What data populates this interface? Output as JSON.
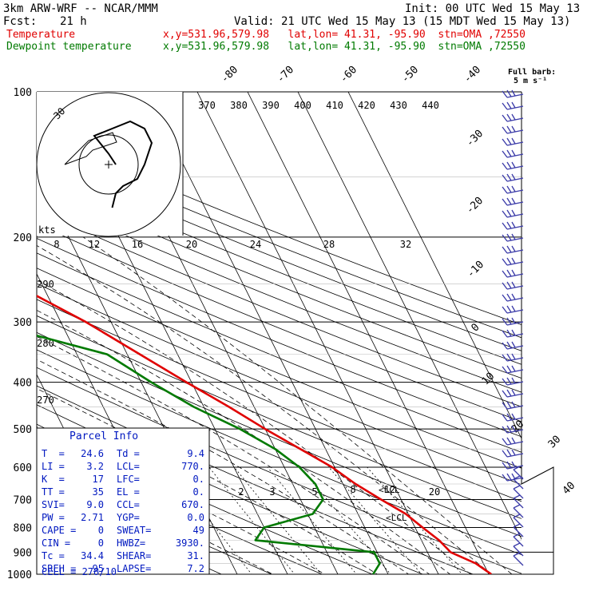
{
  "header": {
    "model": "3km ARW-WRF -- NCAR/MMM",
    "init": "Init: 00 UTC Wed 15 May 13",
    "fcst_label": "Fcst:",
    "fcst_value": "21 h",
    "valid": "Valid: 21 UTC Wed 15 May 13 (15 MDT Wed 15 May 13)",
    "temp_label": "Temperature",
    "temp_info": "x,y=531.96,579.98   lat,lon= 41.31, -95.90  stn=OMA ,72550",
    "dew_label": "Dewpoint temperature",
    "dew_info": "x,y=531.96,579.98   lat,lon= 41.31, -95.90  stn=OMA ,72550"
  },
  "colors": {
    "temperature": "#e00000",
    "dewpoint": "#007a00",
    "info": "#0018c0",
    "isobar": "#000000"
  },
  "chart_data": {
    "type": "line",
    "title": "",
    "pressure_levels": [
      "100",
      "200",
      "300",
      "400",
      "500",
      "600",
      "700",
      "800",
      "900",
      "1000"
    ],
    "isotherm_labels": [
      "-80",
      "-70",
      "-60",
      "-50",
      "-40",
      "-30",
      "-20",
      "-10",
      "0",
      "10",
      "20",
      "30",
      "40"
    ],
    "adiabat_labels": [
      "290",
      "280",
      "270"
    ],
    "theta_e_labels": [
      "370",
      "380",
      "390",
      "400",
      "410",
      "420",
      "430",
      "440"
    ],
    "mixing_ratio_labels": [
      "2",
      "3",
      "5",
      "8",
      "12",
      "20"
    ],
    "lcl_labels": [
      "<LCL",
      "<LCL"
    ],
    "barb_label": "Full barb:",
    "barb_unit": "5 m s⁻¹",
    "hodograph": {
      "units_label": "kts",
      "ring_label": "30",
      "speed_labels": [
        "8",
        "12",
        "16",
        "20",
        "24",
        "28",
        "32"
      ],
      "u": [
        -8,
        -10,
        -14,
        -4,
        0,
        2,
        0,
        -2,
        -6,
        -8,
        -9
      ],
      "v": [
        0,
        3,
        8,
        12,
        10,
        6,
        0,
        -4,
        -6,
        -8,
        -12
      ]
    },
    "series": [
      {
        "name": "Temperature",
        "pressure": [
          1000,
          950,
          900,
          850,
          800,
          750,
          700,
          650,
          600,
          550,
          500,
          450,
          400,
          350,
          300,
          250,
          200,
          175,
          150,
          130,
          115,
          100
        ],
        "temp": [
          30.5,
          28.5,
          24.6,
          23.5,
          21.5,
          19.5,
          16.0,
          12.5,
          9.5,
          5.0,
          0.0,
          -5.0,
          -11.0,
          -17.5,
          -25.0,
          -35.5,
          -48.0,
          -53.0,
          -55.0,
          -52.0,
          -46.0,
          -42.0
        ]
      },
      {
        "name": "Dewpoint temperature",
        "pressure": [
          1000,
          950,
          900,
          850,
          800,
          750,
          700,
          650,
          600,
          550,
          500,
          450,
          400,
          350,
          300,
          280,
          250,
          220,
          200,
          180,
          160,
          130,
          115,
          100
        ],
        "temp": [
          7.0,
          9.4,
          9.4,
          -13.0,
          -10.0,
          1.0,
          4.5,
          4.5,
          3.0,
          0.0,
          -5.0,
          -12.0,
          -18.0,
          -24.0,
          -45.0,
          -57.0,
          -60.0,
          -63.0,
          -64.0,
          -70.0,
          -72.0,
          -72.0,
          -77.0,
          -82.0
        ]
      }
    ]
  },
  "parcel_info": {
    "title": "Parcel Info",
    "rows": [
      [
        "T  =",
        "24.6",
        "Td =",
        "9.4"
      ],
      [
        "LI =",
        "3.2",
        "LCL=",
        "770."
      ],
      [
        "K  =",
        "17",
        "LFC=",
        "0."
      ],
      [
        "TT =",
        "35",
        "EL =",
        "0."
      ],
      [
        "SVI=",
        "9.0",
        "CCL=",
        "670."
      ],
      [
        "PW =",
        "2.71",
        "YGP=",
        "0.0"
      ],
      [
        "CAPE =",
        "0",
        "SWEAT=",
        "49"
      ],
      [
        "CIN =",
        "0",
        "HWBZ=",
        "3930."
      ],
      [
        "Tc =",
        "34.4",
        "SHEAR=",
        "31."
      ],
      [
        "SREH =",
        "95",
        "LAPSE=",
        "7.2"
      ]
    ],
    "cell": "CELL = 278/10"
  }
}
